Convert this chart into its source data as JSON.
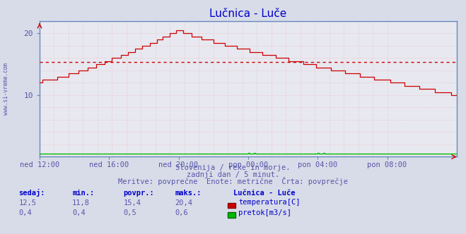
{
  "title": "Lučnica - Luče",
  "title_color": "#0000cc",
  "background_color": "#d8dce8",
  "plot_bg_color": "#e8e8f0",
  "x_tick_labels": [
    "ned 12:00",
    "ned 16:00",
    "ned 20:00",
    "pon 00:00",
    "pon 04:00",
    "pon 08:00"
  ],
  "x_tick_positions": [
    0,
    48,
    96,
    144,
    192,
    240
  ],
  "ylim": [
    0,
    22
  ],
  "xlim": [
    0,
    288
  ],
  "avg_line_y": 15.4,
  "avg_line_color": "#cc0000",
  "temp_color": "#cc0000",
  "flow_color": "#00bb00",
  "watermark": "www.si-vreme.com",
  "footnote1": "Slovenija / reke in morje.",
  "footnote2": "zadnji dan / 5 minut.",
  "footnote3": "Meritve: povprečne  Enote: metrične  Črta: povprečje",
  "label_sedaj": "sedaj:",
  "label_min": "min.:",
  "label_povpr": "povpr.:",
  "label_maks": "maks.:",
  "label_station": "Lučnica - Luče",
  "temp_sedaj": "12,5",
  "temp_min": "11,8",
  "temp_povpr": "15,4",
  "temp_maks": "20,4",
  "flow_sedaj": "0,4",
  "flow_min": "0,4",
  "flow_povpr": "0,5",
  "flow_maks": "0,6",
  "label_temp": "temperatura[C]",
  "label_flow": "pretok[m3/s]",
  "info_color": "#5555aa",
  "label_color": "#0000cc",
  "spine_color": "#6688bb",
  "n_points": 289
}
